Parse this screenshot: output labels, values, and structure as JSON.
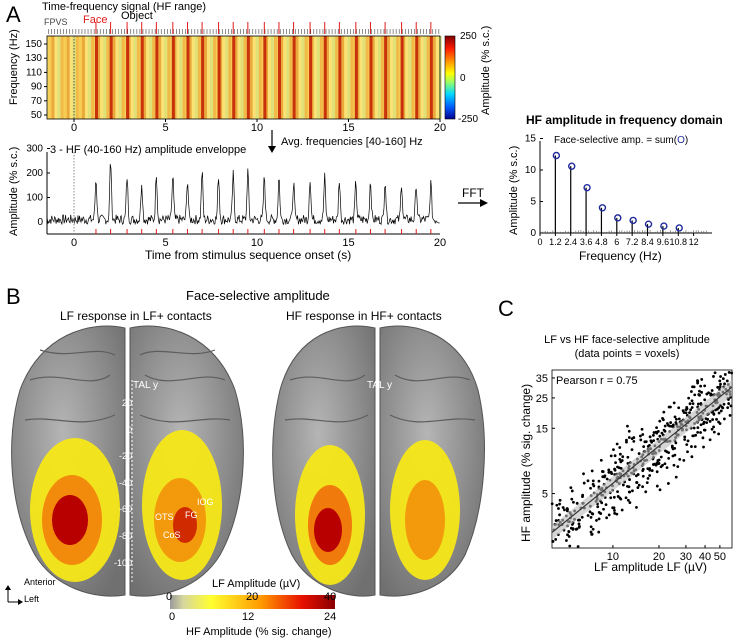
{
  "panels": {
    "a": "A",
    "b": "B",
    "c": "C"
  },
  "panelA": {
    "tf_title": "Time-frequency signal (HF range)",
    "fpvs": "FPVS",
    "face": "Face",
    "object": "Object",
    "tf_ylabel": "Frequency (Hz)",
    "tf_yticks": [
      "150",
      "130",
      "110",
      "90",
      "70",
      "50"
    ],
    "cbar_label": "Amplitude   (% s.c.)",
    "cbar_ticks": [
      "250",
      "0",
      "-250"
    ],
    "tf_xticks": [
      "0",
      "5",
      "10",
      "15",
      "20"
    ],
    "avg_note": "Avg. frequencies [40-160] Hz",
    "env_title": "3 - HF (40-160 Hz) amplitude enveloppe",
    "env_ylabel": "Amplitude (% s.c.)",
    "env_yticks": [
      "300",
      "200",
      "100",
      "0"
    ],
    "env_xticks": [
      "0",
      "5",
      "10",
      "15",
      "20"
    ],
    "env_xlabel": "Time from stimulus sequence onset (s)",
    "fft_label": "FFT",
    "colors": {
      "face_ticks": "#e01b1b",
      "accent": "#1f2a9c"
    }
  },
  "chart_data": [
    {
      "type": "line",
      "title": "3 - HF (40-160 Hz) amplitude enveloppe",
      "xlabel": "Time from stimulus sequence onset (s)",
      "ylabel": "Amplitude (% s.c.)",
      "xlim": [
        -2,
        20
      ],
      "ylim": [
        -40,
        300
      ],
      "face_peaks": {
        "x": [
          1.2,
          2.0,
          2.9,
          3.7,
          4.5,
          5.4,
          6.2,
          7.0,
          7.9,
          8.7,
          9.5,
          10.4,
          11.2,
          12.0,
          12.9,
          13.7,
          14.5,
          15.4,
          16.2,
          17.0,
          17.9,
          18.7,
          19.5
        ],
        "y": [
          170,
          240,
          175,
          155,
          190,
          180,
          165,
          195,
          180,
          185,
          200,
          175,
          175,
          150,
          170,
          175,
          165,
          155,
          160,
          165,
          150,
          145,
          150
        ]
      }
    },
    {
      "type": "bar",
      "title": "HF amplitude in frequency domain",
      "annotation": "Face-selective amp. = sum(",
      "xlabel": "Frequency (Hz)",
      "ylabel": "Amplitude (% s.c.)",
      "x": [
        1.2,
        2.4,
        3.6,
        4.8,
        6.0,
        7.2,
        8.4,
        9.6,
        10.8
      ],
      "values": [
        12.3,
        10.6,
        7.2,
        4.0,
        2.4,
        2.0,
        1.4,
        1.1,
        0.8
      ],
      "xticks": [
        "0",
        "1.2",
        "2.4",
        "3.6",
        "4.8",
        "6",
        "7.2",
        "8.4",
        "9.6",
        "10.8",
        "12"
      ],
      "yticks": [
        "0",
        "5",
        "10",
        "15"
      ],
      "ylim": [
        0,
        15
      ],
      "xlim": [
        0,
        13
      ]
    },
    {
      "type": "scatter",
      "title": "LF vs HF face-selective amplitude",
      "subtitle": "(data points = voxels)",
      "annotation": "Pearson r = 0.75",
      "xlabel": "LF amplitude LF (µV)",
      "ylabel": "HF amplitude (% sig. change)",
      "log_scale": true,
      "xticks": [
        "10",
        "20",
        "30",
        "40",
        "50"
      ],
      "yticks": [
        "5",
        "15",
        "25",
        "35"
      ],
      "xlim": [
        4,
        60
      ],
      "ylim": [
        2,
        40
      ],
      "fit_line": {
        "x": [
          4,
          60
        ],
        "y": [
          2.6,
          30
        ]
      }
    }
  ],
  "panelB": {
    "title": "Face-selective amplitude",
    "left_title": "LF response in LF+ contacts",
    "right_title": "HF response in HF+ contacts",
    "tal_label": "TAL y",
    "tal_ticks": [
      "20",
      "0",
      "-20",
      "-40",
      "-60",
      "-80",
      "-100"
    ],
    "region_labels": [
      "OTS",
      "CoS",
      "FG",
      "IOG"
    ],
    "anterior": "Anterior",
    "left": "Left",
    "cbar_top_label": "LF Amplitude (µV)",
    "cbar_top_ticks": [
      "0",
      "20",
      "40"
    ],
    "cbar_bottom_ticks": [
      "0",
      "12",
      "24"
    ],
    "cbar_bottom_label": "HF Amplitude (% sig. change)"
  }
}
